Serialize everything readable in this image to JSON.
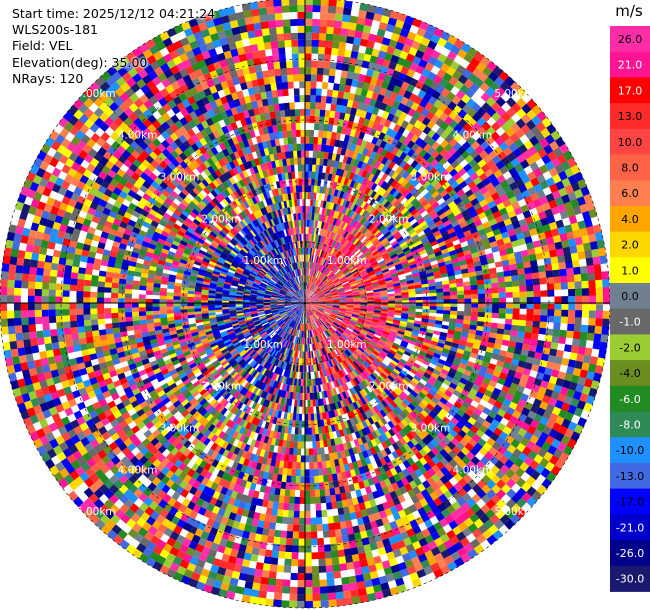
{
  "header": {
    "start_time": "Start time: 2025/12/12 04:21:24",
    "site": "WLS200s-181",
    "field": "Field: VEL",
    "elevation": "Elevation(deg): 35.00",
    "nrays": "NRays: 120"
  },
  "colorbar": {
    "unit": "m/s",
    "ticks": [
      "26.0",
      "21.0",
      "17.0",
      "13.0",
      "10.0",
      "8.0",
      "6.0",
      "4.0",
      "2.0",
      "1.0",
      "0.0",
      "-1.0",
      "-2.0",
      "-4.0",
      "-6.0",
      "-8.0",
      "-10.0",
      "-13.0",
      "-17.0",
      "-21.0",
      "-26.0",
      "-30.0"
    ],
    "colors": [
      "#ff2ea8",
      "#ff1493",
      "#ff0000",
      "#ff2a2a",
      "#ff4444",
      "#ff6347",
      "#ff7f50",
      "#ffa500",
      "#ffd700",
      "#ffff00",
      "#708090",
      "#696969",
      "#9acd32",
      "#6b8e23",
      "#228b22",
      "#2e8b57",
      "#1e90ff",
      "#4169e1",
      "#0000ff",
      "#0000cd",
      "#00008b",
      "#191970"
    ]
  },
  "chart_data": {
    "type": "heatmap",
    "subtype": "polar-ppi",
    "field": "VEL",
    "units": "m/s",
    "nrays": 120,
    "range_rings": [
      "1.00km",
      "2.00km",
      "3.00km",
      "4.00km",
      "5.00km"
    ],
    "color_scale_ticks": [
      26.0,
      21.0,
      17.0,
      13.0,
      10.0,
      8.0,
      6.0,
      4.0,
      2.0,
      1.0,
      0.0,
      -1.0,
      -2.0,
      -4.0,
      -6.0,
      -8.0,
      -10.0,
      -13.0,
      -17.0,
      -21.0,
      -26.0,
      -30.0
    ],
    "grid": true
  }
}
